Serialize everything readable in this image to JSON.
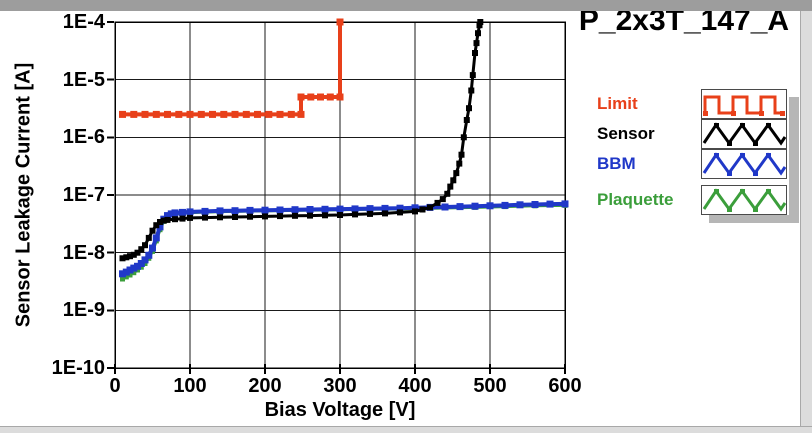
{
  "window": {
    "title": "P_2x3T_147_A"
  },
  "y_axis": {
    "label": "Sensor Leakage Current [A]",
    "ticks": [
      "1E-4",
      "1E-5",
      "1E-6",
      "1E-7",
      "1E-8",
      "1E-9",
      "1E-10"
    ]
  },
  "x_axis": {
    "label": "Bias Voltage [V]",
    "ticks": [
      "0",
      "100",
      "200",
      "300",
      "400",
      "500",
      "600"
    ]
  },
  "legend": {
    "items": [
      {
        "label": "Limit",
        "color": "#e8401a",
        "pattern": "square-wave"
      },
      {
        "label": "Sensor",
        "color": "#000000",
        "pattern": "triangle-wave"
      },
      {
        "label": "BBM",
        "color": "#2038c8",
        "pattern": "triangle-wave"
      },
      {
        "label": "Plaquette",
        "color": "#3b9e3b",
        "pattern": "triangle-wave"
      }
    ]
  },
  "chart_data": {
    "type": "line",
    "title": "P_2x3T_147_A",
    "xlabel": "Bias Voltage [V]",
    "ylabel": "Sensor Leakage Current [A]",
    "xlim": [
      0,
      600
    ],
    "ylim": [
      1e-10,
      0.0001
    ],
    "ylog": true,
    "grid": true,
    "legend_position": "right",
    "xticks": [
      0,
      100,
      200,
      300,
      400,
      500,
      600
    ],
    "yticks": [
      0.0001,
      1e-05,
      1e-06,
      1e-07,
      1e-08,
      1e-09,
      1e-10
    ],
    "series": [
      {
        "name": "Limit",
        "color": "#e8401a",
        "line_width": 4,
        "marker_size": 7,
        "points": [
          [
            10,
            2.5e-06
          ],
          [
            25,
            2.5e-06
          ],
          [
            40,
            2.5e-06
          ],
          [
            55,
            2.5e-06
          ],
          [
            70,
            2.5e-06
          ],
          [
            85,
            2.5e-06
          ],
          [
            100,
            2.5e-06
          ],
          [
            115,
            2.5e-06
          ],
          [
            130,
            2.5e-06
          ],
          [
            145,
            2.5e-06
          ],
          [
            160,
            2.5e-06
          ],
          [
            175,
            2.5e-06
          ],
          [
            190,
            2.5e-06
          ],
          [
            205,
            2.5e-06
          ],
          [
            220,
            2.5e-06
          ],
          [
            235,
            2.5e-06
          ],
          [
            248,
            2.5e-06
          ],
          [
            248,
            5e-06
          ],
          [
            261,
            5e-06
          ],
          [
            274,
            5e-06
          ],
          [
            287,
            5e-06
          ],
          [
            300,
            5e-06
          ],
          [
            300,
            0.0001
          ]
        ]
      },
      {
        "name": "Sensor",
        "color": "#000000",
        "line_width": 3,
        "marker_size": 6,
        "points": [
          [
            10,
            8e-09
          ],
          [
            15,
            8.3e-09
          ],
          [
            20,
            8.7e-09
          ],
          [
            25,
            9.2e-09
          ],
          [
            30,
            1e-08
          ],
          [
            35,
            1.15e-08
          ],
          [
            40,
            1.35e-08
          ],
          [
            45,
            1.8e-08
          ],
          [
            50,
            2.4e-08
          ],
          [
            55,
            3e-08
          ],
          [
            60,
            3.4e-08
          ],
          [
            65,
            3.6e-08
          ],
          [
            70,
            3.7e-08
          ],
          [
            80,
            3.8e-08
          ],
          [
            90,
            3.9e-08
          ],
          [
            100,
            4e-08
          ],
          [
            120,
            4.05e-08
          ],
          [
            140,
            4.1e-08
          ],
          [
            160,
            4.15e-08
          ],
          [
            180,
            4.2e-08
          ],
          [
            200,
            4.25e-08
          ],
          [
            220,
            4.3e-08
          ],
          [
            240,
            4.35e-08
          ],
          [
            260,
            4.4e-08
          ],
          [
            280,
            4.45e-08
          ],
          [
            300,
            4.5e-08
          ],
          [
            320,
            4.6e-08
          ],
          [
            340,
            4.7e-08
          ],
          [
            360,
            4.8e-08
          ],
          [
            380,
            5e-08
          ],
          [
            400,
            5.2e-08
          ],
          [
            410,
            5.6e-08
          ],
          [
            420,
            6.1e-08
          ],
          [
            430,
            7.3e-08
          ],
          [
            437,
            8.5e-08
          ],
          [
            443,
            1.05e-07
          ],
          [
            447,
            1.4e-07
          ],
          [
            451,
            1.8e-07
          ],
          [
            455,
            2.4e-07
          ],
          [
            459,
            3.5e-07
          ],
          [
            462,
            5e-07
          ],
          [
            465,
            1e-06
          ],
          [
            469,
            2e-06
          ],
          [
            472,
            3.2e-06
          ],
          [
            475,
            6.5e-06
          ],
          [
            477,
            1.2e-05
          ],
          [
            480,
            2.9e-05
          ],
          [
            482,
            4.3e-05
          ],
          [
            484,
            6.4e-05
          ],
          [
            486,
            8.8e-05
          ],
          [
            487,
            0.0001
          ]
        ]
      },
      {
        "name": "BBM",
        "color": "#2038c8",
        "line_width": 4,
        "marker_size": 7,
        "points": [
          [
            10,
            4.3e-09
          ],
          [
            15,
            4.6e-09
          ],
          [
            20,
            5e-09
          ],
          [
            25,
            5.4e-09
          ],
          [
            30,
            5.8e-09
          ],
          [
            35,
            6.5e-09
          ],
          [
            40,
            7.5e-09
          ],
          [
            45,
            9e-09
          ],
          [
            50,
            1.2e-08
          ],
          [
            55,
            1.8e-08
          ],
          [
            60,
            2.8e-08
          ],
          [
            65,
            3.8e-08
          ],
          [
            70,
            4.4e-08
          ],
          [
            75,
            4.7e-08
          ],
          [
            80,
            4.9e-08
          ],
          [
            90,
            5e-08
          ],
          [
            100,
            5.1e-08
          ],
          [
            120,
            5.2e-08
          ],
          [
            140,
            5.3e-08
          ],
          [
            160,
            5.35e-08
          ],
          [
            180,
            5.4e-08
          ],
          [
            200,
            5.45e-08
          ],
          [
            220,
            5.5e-08
          ],
          [
            240,
            5.55e-08
          ],
          [
            260,
            5.6e-08
          ],
          [
            280,
            5.65e-08
          ],
          [
            300,
            5.7e-08
          ],
          [
            320,
            5.75e-08
          ],
          [
            340,
            5.8e-08
          ],
          [
            360,
            5.85e-08
          ],
          [
            380,
            5.9e-08
          ],
          [
            400,
            6e-08
          ],
          [
            420,
            6.1e-08
          ],
          [
            440,
            6.2e-08
          ],
          [
            460,
            6.3e-08
          ],
          [
            480,
            6.4e-08
          ],
          [
            500,
            6.5e-08
          ],
          [
            520,
            6.6e-08
          ],
          [
            540,
            6.75e-08
          ],
          [
            560,
            6.85e-08
          ],
          [
            580,
            6.95e-08
          ],
          [
            600,
            7e-08
          ]
        ]
      },
      {
        "name": "Plaquette",
        "color": "#3b9e3b",
        "line_width": 3,
        "marker_size": 5,
        "points": [
          [
            10,
            3.5e-09
          ],
          [
            15,
            3.8e-09
          ],
          [
            20,
            4.1e-09
          ],
          [
            25,
            4.5e-09
          ],
          [
            30,
            5e-09
          ],
          [
            35,
            5.6e-09
          ],
          [
            40,
            6.5e-09
          ],
          [
            45,
            8e-09
          ],
          [
            50,
            1.05e-08
          ],
          [
            55,
            1.6e-08
          ],
          [
            60,
            2.5e-08
          ],
          [
            65,
            3.5e-08
          ],
          [
            70,
            4.2e-08
          ],
          [
            75,
            4.5e-08
          ],
          [
            80,
            4.7e-08
          ],
          [
            90,
            4.85e-08
          ],
          [
            100,
            4.95e-08
          ],
          [
            120,
            5.05e-08
          ],
          [
            140,
            5.15e-08
          ],
          [
            160,
            5.2e-08
          ],
          [
            180,
            5.25e-08
          ],
          [
            200,
            5.3e-08
          ],
          [
            240,
            5.4e-08
          ],
          [
            280,
            5.5e-08
          ],
          [
            320,
            5.6e-08
          ],
          [
            360,
            5.7e-08
          ],
          [
            400,
            5.8e-08
          ],
          [
            440,
            5.95e-08
          ],
          [
            480,
            6.1e-08
          ],
          [
            520,
            6.3e-08
          ],
          [
            560,
            6.5e-08
          ],
          [
            600,
            6.6e-08
          ]
        ]
      }
    ]
  }
}
